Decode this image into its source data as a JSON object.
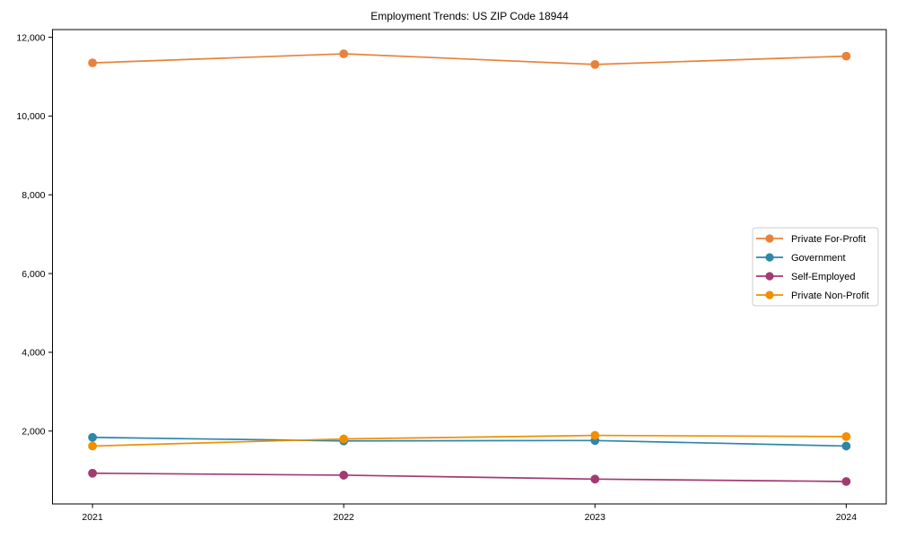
{
  "chart_data": {
    "type": "line",
    "title": "Employment Trends: US ZIP Code 18944",
    "x": [
      "2021",
      "2022",
      "2023",
      "2024"
    ],
    "series": [
      {
        "name": "Private For-Profit",
        "color": "#E8823A",
        "values": [
          11350,
          11580,
          11310,
          11520
        ]
      },
      {
        "name": "Government",
        "color": "#2E86AB",
        "values": [
          1840,
          1750,
          1760,
          1620
        ]
      },
      {
        "name": "Self-Employed",
        "color": "#A23B72",
        "values": [
          930,
          880,
          780,
          720
        ]
      },
      {
        "name": "Private Non-Profit",
        "color": "#F18F01",
        "values": [
          1620,
          1800,
          1890,
          1860
        ]
      }
    ],
    "xlabel": "",
    "ylabel": "",
    "ylim": [
      150,
      12195
    ],
    "yticks": [
      2000,
      4000,
      6000,
      8000,
      10000,
      12000
    ],
    "ytick_labels": [
      "2,000",
      "4,000",
      "6,000",
      "8,000",
      "10,000",
      "12,000"
    ],
    "grid": false,
    "legend_position": "center right",
    "marker": "circle",
    "axis_color": "#000000",
    "legend_border_color": "#cccccc",
    "background_color": "#ffffff"
  }
}
